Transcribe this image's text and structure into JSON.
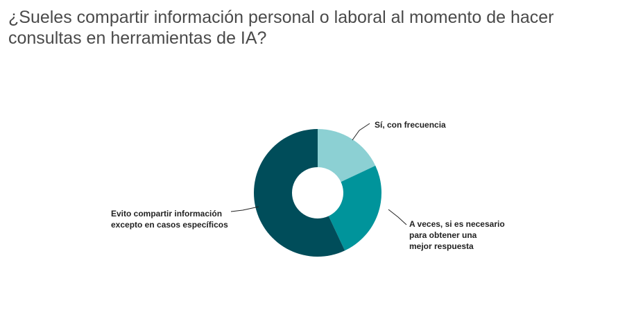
{
  "question": {
    "line1": "¿Sueles compartir información personal o laboral al momento de hacer",
    "line2": "consultas en herramientas de IA?"
  },
  "chart_data": {
    "type": "pie",
    "variant": "donut",
    "categories": [
      "Sí, con frecuencia",
      "A veces, si es necesario para obtener una mejor respuesta",
      "Evito compartir información excepto en casos específicos"
    ],
    "label_lines": [
      [
        "Sí, con frecuencia"
      ],
      [
        "A veces, si es necesario",
        "para obtener una",
        "mejor respuesta"
      ],
      [
        "Evito compartir información",
        "excepto en casos específicos"
      ]
    ],
    "values": [
      18,
      25,
      57
    ],
    "colors": [
      "#8cd0d3",
      "#00949b",
      "#004d5a"
    ]
  }
}
